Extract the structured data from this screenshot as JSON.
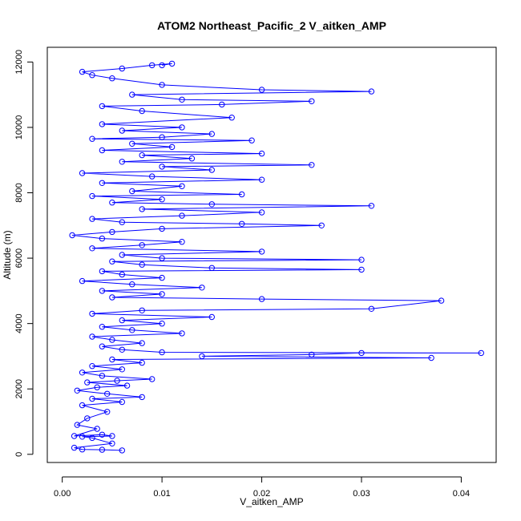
{
  "chart_data": {
    "type": "scatter",
    "title": "ATOM2 Northeast_Pacific_2 V_aitken_AMP",
    "xlabel": "V_aitken_AMP",
    "ylabel": "Altitude (m)",
    "xlim": [
      -0.0015,
      0.0435
    ],
    "ylim": [
      -250,
      12450
    ],
    "x_ticks": [
      0.0,
      0.01,
      0.02,
      0.03,
      0.04
    ],
    "x_tick_labels": [
      "0.00",
      "0.01",
      "0.02",
      "0.03",
      "0.04"
    ],
    "y_ticks": [
      0,
      2000,
      4000,
      6000,
      8000,
      10000,
      12000
    ],
    "y_tick_labels": [
      "0",
      "2000",
      "4000",
      "6000",
      "8000",
      "10000",
      "12000"
    ],
    "grid": false,
    "legend": "none",
    "series": [
      {
        "color": "#0000ff",
        "marker": "open-circle",
        "connected": true,
        "points": [
          [
            0.006,
            120
          ],
          [
            0.004,
            140
          ],
          [
            0.002,
            150
          ],
          [
            0.0012,
            200
          ],
          [
            0.005,
            330
          ],
          [
            0.003,
            500
          ],
          [
            0.002,
            540
          ],
          [
            0.005,
            560
          ],
          [
            0.004,
            600
          ],
          [
            0.0012,
            560
          ],
          [
            0.0035,
            780
          ],
          [
            0.0015,
            900
          ],
          [
            0.0025,
            1100
          ],
          [
            0.0045,
            1300
          ],
          [
            0.002,
            1500
          ],
          [
            0.006,
            1600
          ],
          [
            0.003,
            1700
          ],
          [
            0.008,
            1750
          ],
          [
            0.0045,
            1850
          ],
          [
            0.0015,
            1950
          ],
          [
            0.0035,
            2050
          ],
          [
            0.0065,
            2100
          ],
          [
            0.0025,
            2200
          ],
          [
            0.0055,
            2250
          ],
          [
            0.009,
            2300
          ],
          [
            0.004,
            2400
          ],
          [
            0.002,
            2500
          ],
          [
            0.006,
            2600
          ],
          [
            0.003,
            2700
          ],
          [
            0.008,
            2800
          ],
          [
            0.005,
            2900
          ],
          [
            0.037,
            2950
          ],
          [
            0.014,
            3000
          ],
          [
            0.025,
            3050
          ],
          [
            0.03,
            3100
          ],
          [
            0.042,
            3100
          ],
          [
            0.01,
            3120
          ],
          [
            0.006,
            3200
          ],
          [
            0.004,
            3300
          ],
          [
            0.008,
            3400
          ],
          [
            0.005,
            3500
          ],
          [
            0.003,
            3600
          ],
          [
            0.012,
            3700
          ],
          [
            0.007,
            3800
          ],
          [
            0.004,
            3900
          ],
          [
            0.01,
            4000
          ],
          [
            0.006,
            4100
          ],
          [
            0.015,
            4200
          ],
          [
            0.003,
            4300
          ],
          [
            0.008,
            4400
          ],
          [
            0.031,
            4450
          ],
          [
            0.038,
            4700
          ],
          [
            0.02,
            4750
          ],
          [
            0.005,
            4800
          ],
          [
            0.01,
            4900
          ],
          [
            0.004,
            5000
          ],
          [
            0.014,
            5100
          ],
          [
            0.007,
            5200
          ],
          [
            0.002,
            5300
          ],
          [
            0.01,
            5400
          ],
          [
            0.006,
            5500
          ],
          [
            0.004,
            5600
          ],
          [
            0.03,
            5650
          ],
          [
            0.015,
            5700
          ],
          [
            0.008,
            5800
          ],
          [
            0.005,
            5900
          ],
          [
            0.03,
            5950
          ],
          [
            0.01,
            6000
          ],
          [
            0.006,
            6100
          ],
          [
            0.02,
            6200
          ],
          [
            0.003,
            6300
          ],
          [
            0.008,
            6400
          ],
          [
            0.012,
            6500
          ],
          [
            0.004,
            6600
          ],
          [
            0.001,
            6700
          ],
          [
            0.005,
            6800
          ],
          [
            0.01,
            6900
          ],
          [
            0.026,
            7000
          ],
          [
            0.018,
            7050
          ],
          [
            0.006,
            7100
          ],
          [
            0.003,
            7200
          ],
          [
            0.012,
            7300
          ],
          [
            0.02,
            7400
          ],
          [
            0.008,
            7500
          ],
          [
            0.031,
            7600
          ],
          [
            0.015,
            7650
          ],
          [
            0.005,
            7700
          ],
          [
            0.01,
            7800
          ],
          [
            0.003,
            7900
          ],
          [
            0.018,
            7950
          ],
          [
            0.007,
            8050
          ],
          [
            0.012,
            8200
          ],
          [
            0.004,
            8300
          ],
          [
            0.02,
            8400
          ],
          [
            0.009,
            8500
          ],
          [
            0.002,
            8600
          ],
          [
            0.015,
            8700
          ],
          [
            0.01,
            8800
          ],
          [
            0.025,
            8850
          ],
          [
            0.006,
            8950
          ],
          [
            0.013,
            9050
          ],
          [
            0.008,
            9150
          ],
          [
            0.02,
            9200
          ],
          [
            0.004,
            9300
          ],
          [
            0.011,
            9400
          ],
          [
            0.007,
            9500
          ],
          [
            0.019,
            9600
          ],
          [
            0.003,
            9650
          ],
          [
            0.01,
            9700
          ],
          [
            0.015,
            9800
          ],
          [
            0.006,
            9900
          ],
          [
            0.012,
            10000
          ],
          [
            0.004,
            10100
          ],
          [
            0.017,
            10300
          ],
          [
            0.008,
            10500
          ],
          [
            0.004,
            10650
          ],
          [
            0.016,
            10700
          ],
          [
            0.025,
            10800
          ],
          [
            0.012,
            10850
          ],
          [
            0.007,
            11000
          ],
          [
            0.031,
            11100
          ],
          [
            0.02,
            11150
          ],
          [
            0.01,
            11300
          ],
          [
            0.005,
            11500
          ],
          [
            0.003,
            11600
          ],
          [
            0.002,
            11700
          ],
          [
            0.006,
            11800
          ],
          [
            0.009,
            11900
          ],
          [
            0.011,
            11950
          ],
          [
            0.01,
            11900
          ]
        ]
      }
    ]
  }
}
